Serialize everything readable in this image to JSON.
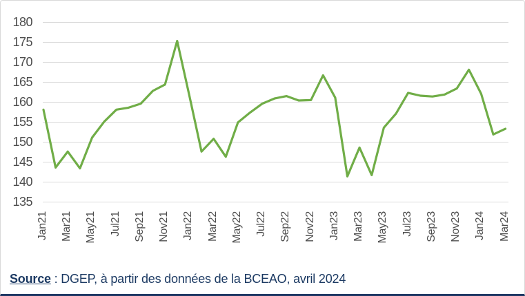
{
  "chart_data": {
    "type": "line",
    "title": "",
    "xlabel": "",
    "ylabel": "",
    "x": [
      "Jan21",
      "Feb21",
      "Mar21",
      "Apr21",
      "May21",
      "Jun21",
      "Jul21",
      "Aug21",
      "Sep21",
      "Oct21",
      "Nov21",
      "Dec21",
      "Jan22",
      "Feb22",
      "Mar22",
      "Apr22",
      "May22",
      "Jun22",
      "Jul22",
      "Aug22",
      "Sep22",
      "Oct22",
      "Nov22",
      "Dec22",
      "Jan23",
      "Feb23",
      "Mar23",
      "Apr23",
      "May23",
      "Jun23",
      "Jul23",
      "Aug23",
      "Sep23",
      "Oct23",
      "Nov23",
      "Dec23",
      "Jan24",
      "Feb24",
      "Mar24"
    ],
    "values": [
      158,
      143.5,
      147.5,
      143.3,
      151,
      155,
      158,
      158.5,
      159.5,
      162.7,
      164.3,
      175.2,
      161.5,
      147.5,
      150.7,
      146.2,
      154.8,
      157.3,
      159.5,
      160.8,
      161.4,
      160.3,
      160.4,
      166.6,
      161,
      141.3,
      148.5,
      141.6,
      153.5,
      157,
      162.2,
      161.5,
      161.3,
      161.8,
      163.3,
      168,
      162,
      151.8,
      153.2
    ],
    "x_tick_labels": [
      "Jan21",
      "Mar21",
      "May21",
      "Jul21",
      "Sep21",
      "Nov21",
      "Jan22",
      "Mar22",
      "May22",
      "Jul22",
      "Sep22",
      "Nov22",
      "Jan23",
      "Mar23",
      "May23",
      "Jul23",
      "Sep23",
      "Nov23",
      "Jan24",
      "Mar24"
    ],
    "y_ticks": [
      180,
      175,
      170,
      165,
      160,
      155,
      150,
      145,
      140,
      135
    ],
    "ylim": [
      135,
      180
    ],
    "grid": "horizontal",
    "legend_position": "none",
    "line_color": "#70AD47"
  },
  "colors": {
    "line": "#70AD47",
    "grid": "#D9D9D9",
    "axis_text": "#4D4D4D",
    "source_text": "#1C3A63",
    "bottom_rule": "#1F3864",
    "frame": "#D9D9D9",
    "background": "#FFFFFF"
  },
  "source": {
    "label": "Source",
    "text": " : DGEP, à partir des données de la BCEAO, avril 2024"
  }
}
